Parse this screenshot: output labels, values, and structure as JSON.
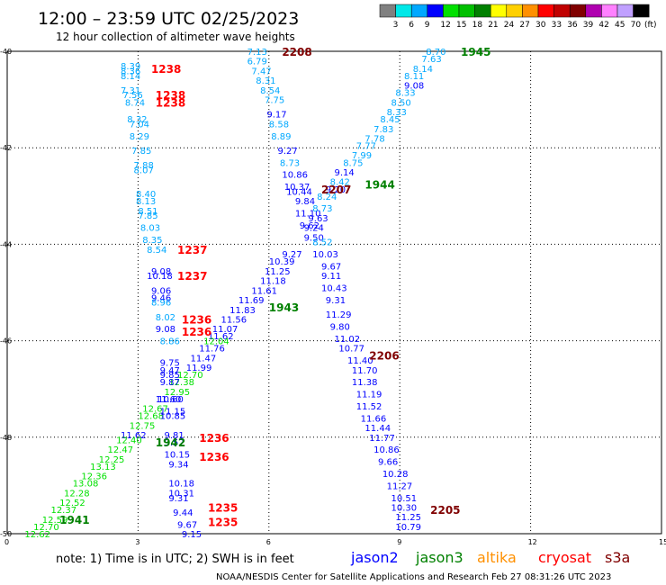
{
  "header": {
    "title": "12:00 – 23:59 UTC 02/25/2023",
    "subtitle": "12 hour collection of altimeter wave heights"
  },
  "colorbar": {
    "colors": [
      "#808080",
      "#00e8e8",
      "#00a8ff",
      "#0000ff",
      "#00e000",
      "#00c000",
      "#008000",
      "#ffff00",
      "#ffd000",
      "#ff9000",
      "#ff0000",
      "#c00000",
      "#800000",
      "#b000b0",
      "#ff80ff",
      "#c0a0ff",
      "#000000"
    ],
    "labels": [
      "3",
      "6",
      "9",
      "12",
      "15",
      "18",
      "21",
      "24",
      "27",
      "30",
      "33",
      "36",
      "39",
      "42",
      "45",
      "70"
    ],
    "unit": "(ft)"
  },
  "footer": {
    "note": "note:  1) Time is in UTC; 2) SWH is in feet",
    "credit": "NOAA/NESDIS Center for Satellite Applications and Research    Feb 27 08:31:26 UTC 2023"
  },
  "satellites": [
    {
      "name": "jason2",
      "color": "#0000ff"
    },
    {
      "name": "jason3",
      "color": "#008000"
    },
    {
      "name": "altika",
      "color": "#ff9000"
    },
    {
      "name": "cryosat",
      "color": "#ff0000"
    },
    {
      "name": "s3a",
      "color": "#800000"
    }
  ],
  "chart_data": {
    "type": "scatter",
    "x_ticks": [
      "0",
      "3",
      "6",
      "9",
      "12",
      "15"
    ],
    "y_ticks": [
      "-40",
      "-42",
      "-44",
      "-46",
      "-48",
      "-50"
    ],
    "xlim": [
      0,
      15
    ],
    "ylim": [
      -50,
      -40
    ],
    "grid": true,
    "pass_labels": [
      {
        "text": "2208",
        "x": 6.3,
        "y": -40.0,
        "color": "#800000"
      },
      {
        "text": "1945",
        "x": 10.4,
        "y": -40.0,
        "color": "#008000"
      },
      {
        "text": "1238",
        "x": 3.3,
        "y": -40.35,
        "color": "#ff0000"
      },
      {
        "text": "1238",
        "x": 3.4,
        "y": -40.9,
        "color": "#ff0000"
      },
      {
        "text": "1238",
        "x": 3.4,
        "y": -41.05,
        "color": "#ff0000"
      },
      {
        "text": "2207",
        "x": 7.2,
        "y": -42.85,
        "color": "#800000"
      },
      {
        "text": "1944",
        "x": 8.2,
        "y": -42.75,
        "color": "#008000"
      },
      {
        "text": "1237",
        "x": 3.9,
        "y": -44.1,
        "color": "#ff0000"
      },
      {
        "text": "1237",
        "x": 3.9,
        "y": -44.65,
        "color": "#ff0000"
      },
      {
        "text": "1943",
        "x": 6.0,
        "y": -45.3,
        "color": "#008000"
      },
      {
        "text": "1236",
        "x": 4.0,
        "y": -45.55,
        "color": "#ff0000"
      },
      {
        "text": "1236",
        "x": 4.0,
        "y": -45.8,
        "color": "#ff0000"
      },
      {
        "text": "2206",
        "x": 8.3,
        "y": -46.3,
        "color": "#800000"
      },
      {
        "text": "1236",
        "x": 4.4,
        "y": -48.0,
        "color": "#ff0000"
      },
      {
        "text": "1236",
        "x": 4.4,
        "y": -48.4,
        "color": "#ff0000"
      },
      {
        "text": "1942",
        "x": 3.4,
        "y": -48.1,
        "color": "#008000"
      },
      {
        "text": "1941",
        "x": 1.2,
        "y": -49.7,
        "color": "#008000"
      },
      {
        "text": "1235",
        "x": 4.6,
        "y": -49.45,
        "color": "#ff0000"
      },
      {
        "text": "1235",
        "x": 4.6,
        "y": -49.75,
        "color": "#ff0000"
      },
      {
        "text": "2205",
        "x": 9.7,
        "y": -49.5,
        "color": "#800000"
      }
    ],
    "observations": [
      {
        "text": "7.13",
        "x": 5.5,
        "y": -40.0
      },
      {
        "text": "6.79",
        "x": 5.5,
        "y": -40.2
      },
      {
        "text": "7.47",
        "x": 5.6,
        "y": -40.4
      },
      {
        "text": "8.31",
        "x": 5.7,
        "y": -40.6
      },
      {
        "text": "8.54",
        "x": 5.8,
        "y": -40.8
      },
      {
        "text": "7.75",
        "x": 5.9,
        "y": -41.0
      },
      {
        "text": "9.17",
        "x": 5.95,
        "y": -41.3
      },
      {
        "text": "8.58",
        "x": 6.0,
        "y": -41.5
      },
      {
        "text": "8.89",
        "x": 6.05,
        "y": -41.75
      },
      {
        "text": "9.27",
        "x": 6.2,
        "y": -42.05
      },
      {
        "text": "8.73",
        "x": 6.25,
        "y": -42.3
      },
      {
        "text": "10.86",
        "x": 6.3,
        "y": -42.55
      },
      {
        "text": "10.37",
        "x": 6.35,
        "y": -42.8
      },
      {
        "text": "10.44",
        "x": 6.4,
        "y": -42.9
      },
      {
        "text": "9.84",
        "x": 6.6,
        "y": -43.1
      },
      {
        "text": "11.10",
        "x": 6.6,
        "y": -43.35
      },
      {
        "text": "9.62",
        "x": 6.7,
        "y": -43.6
      },
      {
        "text": "9.50",
        "x": 6.8,
        "y": -43.85
      },
      {
        "text": "8.52",
        "x": 7.0,
        "y": -43.95
      },
      {
        "text": "10.03",
        "x": 7.0,
        "y": -44.2
      },
      {
        "text": "9.67",
        "x": 7.2,
        "y": -44.45
      },
      {
        "text": "9.11",
        "x": 7.2,
        "y": -44.65
      },
      {
        "text": "10.43",
        "x": 7.2,
        "y": -44.9
      },
      {
        "text": "9.31",
        "x": 7.3,
        "y": -45.15
      },
      {
        "text": "11.29",
        "x": 7.3,
        "y": -45.45
      },
      {
        "text": "9.80",
        "x": 7.4,
        "y": -45.7
      },
      {
        "text": "11.02",
        "x": 7.5,
        "y": -45.95
      },
      {
        "text": "10.77",
        "x": 7.6,
        "y": -46.15
      },
      {
        "text": "11.40",
        "x": 7.8,
        "y": -46.4
      },
      {
        "text": "11.70",
        "x": 7.9,
        "y": -46.6
      },
      {
        "text": "11.38",
        "x": 7.9,
        "y": -46.85
      },
      {
        "text": "11.19",
        "x": 8.0,
        "y": -47.1
      },
      {
        "text": "11.52",
        "x": 8.0,
        "y": -47.35
      },
      {
        "text": "11.66",
        "x": 8.1,
        "y": -47.6
      },
      {
        "text": "11.44",
        "x": 8.2,
        "y": -47.8
      },
      {
        "text": "11.77",
        "x": 8.3,
        "y": -48.0
      },
      {
        "text": "10.86",
        "x": 8.4,
        "y": -48.25
      },
      {
        "text": "9.66",
        "x": 8.5,
        "y": -48.5
      },
      {
        "text": "10.28",
        "x": 8.6,
        "y": -48.75
      },
      {
        "text": "11.27",
        "x": 8.7,
        "y": -49.0
      },
      {
        "text": "10.51",
        "x": 8.8,
        "y": -49.25
      },
      {
        "text": "10.30",
        "x": 8.8,
        "y": -49.45
      },
      {
        "text": "11.25",
        "x": 8.9,
        "y": -49.65
      },
      {
        "text": "10.79",
        "x": 8.9,
        "y": -49.85
      },
      {
        "text": "8.70",
        "x": 9.6,
        "y": -40.0
      },
      {
        "text": "7.63",
        "x": 9.5,
        "y": -40.15
      },
      {
        "text": "8.14",
        "x": 9.3,
        "y": -40.35
      },
      {
        "text": "8.11",
        "x": 9.1,
        "y": -40.5
      },
      {
        "text": "9.08",
        "x": 9.1,
        "y": -40.7
      },
      {
        "text": "8.33",
        "x": 8.9,
        "y": -40.85
      },
      {
        "text": "8.50",
        "x": 8.8,
        "y": -41.05
      },
      {
        "text": "8.33",
        "x": 8.7,
        "y": -41.25
      },
      {
        "text": "8.45",
        "x": 8.55,
        "y": -41.4
      },
      {
        "text": "7.83",
        "x": 8.4,
        "y": -41.6
      },
      {
        "text": "7.78",
        "x": 8.2,
        "y": -41.8
      },
      {
        "text": "7.77",
        "x": 8.0,
        "y": -41.95
      },
      {
        "text": "7.99",
        "x": 7.9,
        "y": -42.15
      },
      {
        "text": "8.75",
        "x": 7.7,
        "y": -42.3
      },
      {
        "text": "9.14",
        "x": 7.5,
        "y": -42.5
      },
      {
        "text": "8.42",
        "x": 7.4,
        "y": -42.7
      },
      {
        "text": "9.20",
        "x": 7.3,
        "y": -42.85
      },
      {
        "text": "8.24",
        "x": 7.1,
        "y": -43.0
      },
      {
        "text": "8.73",
        "x": 7.0,
        "y": -43.25
      },
      {
        "text": "9.63",
        "x": 6.9,
        "y": -43.45
      },
      {
        "text": "9.24",
        "x": 6.8,
        "y": -43.65
      },
      {
        "text": "9.27",
        "x": 6.3,
        "y": -44.2
      },
      {
        "text": "10.39",
        "x": 6.0,
        "y": -44.35
      },
      {
        "text": "11.25",
        "x": 5.9,
        "y": -44.55
      },
      {
        "text": "11.18",
        "x": 5.8,
        "y": -44.75
      },
      {
        "text": "11.61",
        "x": 5.6,
        "y": -44.95
      },
      {
        "text": "11.69",
        "x": 5.3,
        "y": -45.15
      },
      {
        "text": "11.83",
        "x": 5.1,
        "y": -45.35
      },
      {
        "text": "11.56",
        "x": 4.9,
        "y": -45.55
      },
      {
        "text": "11.07",
        "x": 4.7,
        "y": -45.75
      },
      {
        "text": "11.62",
        "x": 4.6,
        "y": -45.9
      },
      {
        "text": "12.04",
        "x": 4.5,
        "y": -46.0
      },
      {
        "text": "11.76",
        "x": 4.4,
        "y": -46.15
      },
      {
        "text": "11.47",
        "x": 4.2,
        "y": -46.35
      },
      {
        "text": "11.99",
        "x": 4.1,
        "y": -46.55
      },
      {
        "text": "12.70",
        "x": 3.9,
        "y": -46.7
      },
      {
        "text": "12.38",
        "x": 3.7,
        "y": -46.85
      },
      {
        "text": "12.95",
        "x": 3.6,
        "y": -47.05
      },
      {
        "text": "11.60",
        "x": 3.4,
        "y": -47.2
      },
      {
        "text": "12.67",
        "x": 3.1,
        "y": -47.4
      },
      {
        "text": "12.68",
        "x": 3.0,
        "y": -47.55
      },
      {
        "text": "12.75",
        "x": 2.8,
        "y": -47.75
      },
      {
        "text": "11.62",
        "x": 2.6,
        "y": -47.95
      },
      {
        "text": "12.40",
        "x": 2.5,
        "y": -48.05
      },
      {
        "text": "12.47",
        "x": 2.3,
        "y": -48.25
      },
      {
        "text": "12.25",
        "x": 2.1,
        "y": -48.45
      },
      {
        "text": "13.13",
        "x": 1.9,
        "y": -48.6
      },
      {
        "text": "12.36",
        "x": 1.7,
        "y": -48.8
      },
      {
        "text": "13.08",
        "x": 1.5,
        "y": -48.95
      },
      {
        "text": "12.28",
        "x": 1.3,
        "y": -49.15
      },
      {
        "text": "12.52",
        "x": 1.2,
        "y": -49.35
      },
      {
        "text": "12.37",
        "x": 1.0,
        "y": -49.5
      },
      {
        "text": "12.59",
        "x": 0.8,
        "y": -49.7
      },
      {
        "text": "12.70",
        "x": 0.6,
        "y": -49.85
      },
      {
        "text": "12.62",
        "x": 0.4,
        "y": -50.0
      },
      {
        "text": "8.39",
        "x": 2.6,
        "y": -40.3
      },
      {
        "text": "8.36",
        "x": 2.6,
        "y": -40.4
      },
      {
        "text": "8.14",
        "x": 2.6,
        "y": -40.5
      },
      {
        "text": "7.31",
        "x": 2.6,
        "y": -40.8
      },
      {
        "text": "7.56",
        "x": 2.65,
        "y": -40.9
      },
      {
        "text": "8.74",
        "x": 2.7,
        "y": -41.05
      },
      {
        "text": "8.32",
        "x": 2.75,
        "y": -41.4
      },
      {
        "text": "7.04",
        "x": 2.8,
        "y": -41.5
      },
      {
        "text": "8.29",
        "x": 2.8,
        "y": -41.75
      },
      {
        "text": "7.85",
        "x": 2.85,
        "y": -42.05
      },
      {
        "text": "7.88",
        "x": 2.9,
        "y": -42.35
      },
      {
        "text": "8.07",
        "x": 2.9,
        "y": -42.45
      },
      {
        "text": "8.40",
        "x": 2.95,
        "y": -42.95
      },
      {
        "text": "8.13",
        "x": 2.95,
        "y": -43.1
      },
      {
        "text": "8.51",
        "x": 3.0,
        "y": -43.3
      },
      {
        "text": "7.85",
        "x": 3.0,
        "y": -43.4
      },
      {
        "text": "8.03",
        "x": 3.05,
        "y": -43.65
      },
      {
        "text": "8.35",
        "x": 3.1,
        "y": -43.9
      },
      {
        "text": "8.54",
        "x": 3.2,
        "y": -44.1
      },
      {
        "text": "9.08",
        "x": 3.3,
        "y": -44.55
      },
      {
        "text": "10.18",
        "x": 3.2,
        "y": -44.65
      },
      {
        "text": "9.06",
        "x": 3.3,
        "y": -44.95
      },
      {
        "text": "9.46",
        "x": 3.3,
        "y": -45.1
      },
      {
        "text": "8.96",
        "x": 3.3,
        "y": -45.2
      },
      {
        "text": "8.02",
        "x": 3.4,
        "y": -45.5
      },
      {
        "text": "9.08",
        "x": 3.4,
        "y": -45.75
      },
      {
        "text": "8.86",
        "x": 3.5,
        "y": -46.0
      },
      {
        "text": "9.75",
        "x": 3.5,
        "y": -46.45
      },
      {
        "text": "9.47",
        "x": 3.5,
        "y": -46.6
      },
      {
        "text": "9.85",
        "x": 3.5,
        "y": -46.7
      },
      {
        "text": "9.87",
        "x": 3.5,
        "y": -46.85
      },
      {
        "text": "10.60",
        "x": 3.45,
        "y": -47.2
      },
      {
        "text": "11.15",
        "x": 3.5,
        "y": -47.45
      },
      {
        "text": "10.85",
        "x": 3.5,
        "y": -47.55
      },
      {
        "text": "9.81",
        "x": 3.6,
        "y": -47.95
      },
      {
        "text": "9.52",
        "x": 3.6,
        "y": -48.1
      },
      {
        "text": "10.15",
        "x": 3.6,
        "y": -48.35
      },
      {
        "text": "9.34",
        "x": 3.7,
        "y": -48.55
      },
      {
        "text": "10.18",
        "x": 3.7,
        "y": -48.95
      },
      {
        "text": "10.31",
        "x": 3.7,
        "y": -49.15
      },
      {
        "text": "9.31",
        "x": 3.7,
        "y": -49.25
      },
      {
        "text": "9.44",
        "x": 3.8,
        "y": -49.55
      },
      {
        "text": "9.67",
        "x": 3.9,
        "y": -49.8
      },
      {
        "text": "9.15",
        "x": 4.0,
        "y": -50.0
      }
    ]
  }
}
